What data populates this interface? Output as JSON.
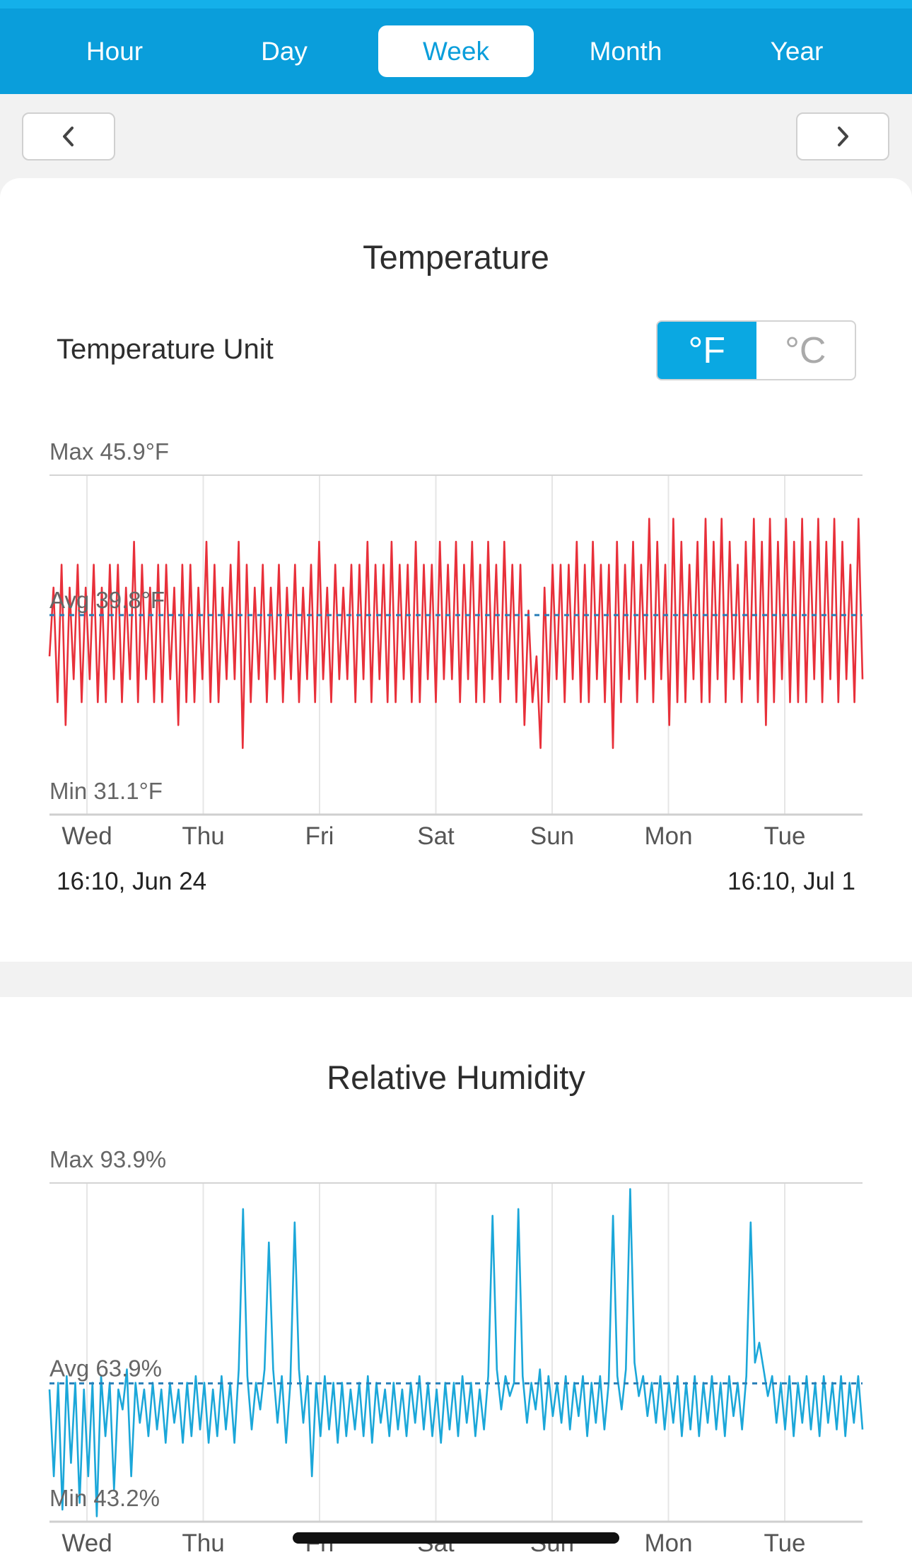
{
  "tabs": [
    {
      "label": "Hour",
      "active": false
    },
    {
      "label": "Day",
      "active": false
    },
    {
      "label": "Week",
      "active": true
    },
    {
      "label": "Month",
      "active": false
    },
    {
      "label": "Year",
      "active": false
    }
  ],
  "nav": {
    "prev_icon": "chevron-left-icon",
    "next_icon": "chevron-right-icon"
  },
  "temperature": {
    "title": "Temperature",
    "unit_label": "Temperature Unit",
    "unit_options": [
      "°F",
      "°C"
    ],
    "selected_unit": "°F",
    "range_start": "16:10,  Jun 24",
    "range_end": "16:10,  Jul 1",
    "color": "#e8303a"
  },
  "humidity": {
    "title": "Relative Humidity",
    "color": "#1ba7d9"
  },
  "colors": {
    "accent": "#0a9edb",
    "avg_line": "#2a7fb8"
  },
  "chart_data": [
    {
      "type": "line",
      "title": "Temperature",
      "x_ticks": [
        "Wed",
        "Thu",
        "Fri",
        "Sat",
        "Sun",
        "Mon",
        "Tue"
      ],
      "max_label": "Max 45.9°F",
      "avg_label": "Avg 39.8°F",
      "min_label": "Min 31.1°F",
      "max": 45.9,
      "avg": 39.8,
      "min": 31.1,
      "ylim": [
        31.1,
        45.9
      ],
      "x_range": [
        "16:10, Jun 24",
        "16:10, Jul 1"
      ],
      "grid": true,
      "series": [
        {
          "values": [
            38,
            41,
            36,
            42,
            35,
            41,
            37,
            42,
            36,
            41,
            37,
            42,
            36,
            41,
            36,
            42,
            37,
            42,
            36,
            41,
            37,
            43,
            36,
            42,
            37,
            41,
            36,
            42,
            36,
            42,
            37,
            41,
            35,
            42,
            36,
            42,
            36,
            41,
            37,
            43,
            36,
            42,
            36,
            41,
            37,
            42,
            37,
            43,
            34,
            42,
            36,
            41,
            37,
            42,
            36,
            41,
            37,
            42,
            36,
            41,
            37,
            42,
            36,
            41,
            37,
            42,
            36,
            43,
            37,
            41,
            36,
            42,
            37,
            41,
            37,
            42,
            36,
            42,
            37,
            43,
            36,
            42,
            37,
            42,
            36,
            43,
            36,
            42,
            37,
            42,
            36,
            43,
            36,
            42,
            37,
            42,
            36,
            43,
            37,
            42,
            37,
            43,
            36,
            42,
            37,
            43,
            36,
            42,
            36,
            43,
            37,
            42,
            36,
            43,
            37,
            42,
            36,
            42,
            35,
            40,
            36,
            38,
            34,
            41,
            36,
            42,
            37,
            42,
            36,
            42,
            37,
            43,
            36,
            42,
            36,
            43,
            37,
            42,
            36,
            42,
            34,
            43,
            36,
            42,
            37,
            43,
            36,
            42,
            37,
            44,
            36,
            43,
            37,
            42,
            35,
            44,
            36,
            43,
            36,
            42,
            37,
            43,
            36,
            44,
            36,
            43,
            37,
            44,
            36,
            43,
            37,
            42,
            36,
            43,
            37,
            44,
            36,
            43,
            35,
            44,
            36,
            43,
            37,
            44,
            36,
            43,
            36,
            44,
            36,
            43,
            37,
            44,
            36,
            43,
            37,
            44,
            36,
            43,
            37,
            42,
            36,
            44,
            37
          ]
        }
      ]
    },
    {
      "type": "line",
      "title": "Relative Humidity",
      "x_ticks": [
        "Wed",
        "Thu",
        "Fri",
        "Sat",
        "Sun",
        "Mon",
        "Tue"
      ],
      "max_label": "Max 93.9%",
      "avg_label": "Avg 63.9%",
      "min_label": "Min 43.2%",
      "max": 93.9,
      "avg": 63.9,
      "min": 43.2,
      "ylim": [
        43.2,
        93.9
      ],
      "grid": true,
      "series": [
        {
          "values": [
            63,
            50,
            64,
            45,
            65,
            52,
            64,
            46,
            63,
            50,
            64,
            44,
            65,
            56,
            64,
            48,
            63,
            60,
            66,
            50,
            64,
            58,
            63,
            56,
            64,
            57,
            63,
            55,
            64,
            58,
            63,
            55,
            64,
            56,
            65,
            57,
            64,
            55,
            63,
            56,
            65,
            57,
            64,
            55,
            66,
            90,
            65,
            57,
            64,
            60,
            66,
            85,
            66,
            58,
            65,
            55,
            64,
            88,
            66,
            58,
            65,
            50,
            64,
            56,
            65,
            57,
            64,
            55,
            64,
            56,
            63,
            57,
            64,
            56,
            65,
            55,
            64,
            58,
            63,
            56,
            64,
            57,
            63,
            56,
            64,
            58,
            65,
            57,
            64,
            56,
            63,
            55,
            64,
            57,
            64,
            56,
            65,
            58,
            64,
            56,
            63,
            57,
            65,
            89,
            66,
            60,
            65,
            62,
            64,
            90,
            65,
            58,
            64,
            60,
            66,
            57,
            65,
            59,
            64,
            58,
            65,
            57,
            64,
            59,
            65,
            56,
            64,
            58,
            65,
            57,
            64,
            89,
            65,
            60,
            66,
            93,
            67,
            62,
            65,
            59,
            64,
            58,
            65,
            57,
            64,
            58,
            65,
            56,
            64,
            57,
            65,
            56,
            64,
            58,
            65,
            57,
            64,
            56,
            65,
            59,
            64,
            57,
            65,
            88,
            67,
            70,
            66,
            62,
            65,
            58,
            64,
            57,
            65,
            56,
            64,
            58,
            65,
            57,
            64,
            56,
            65,
            58,
            64,
            57,
            65,
            56,
            64,
            58,
            65,
            57
          ]
        }
      ]
    }
  ]
}
